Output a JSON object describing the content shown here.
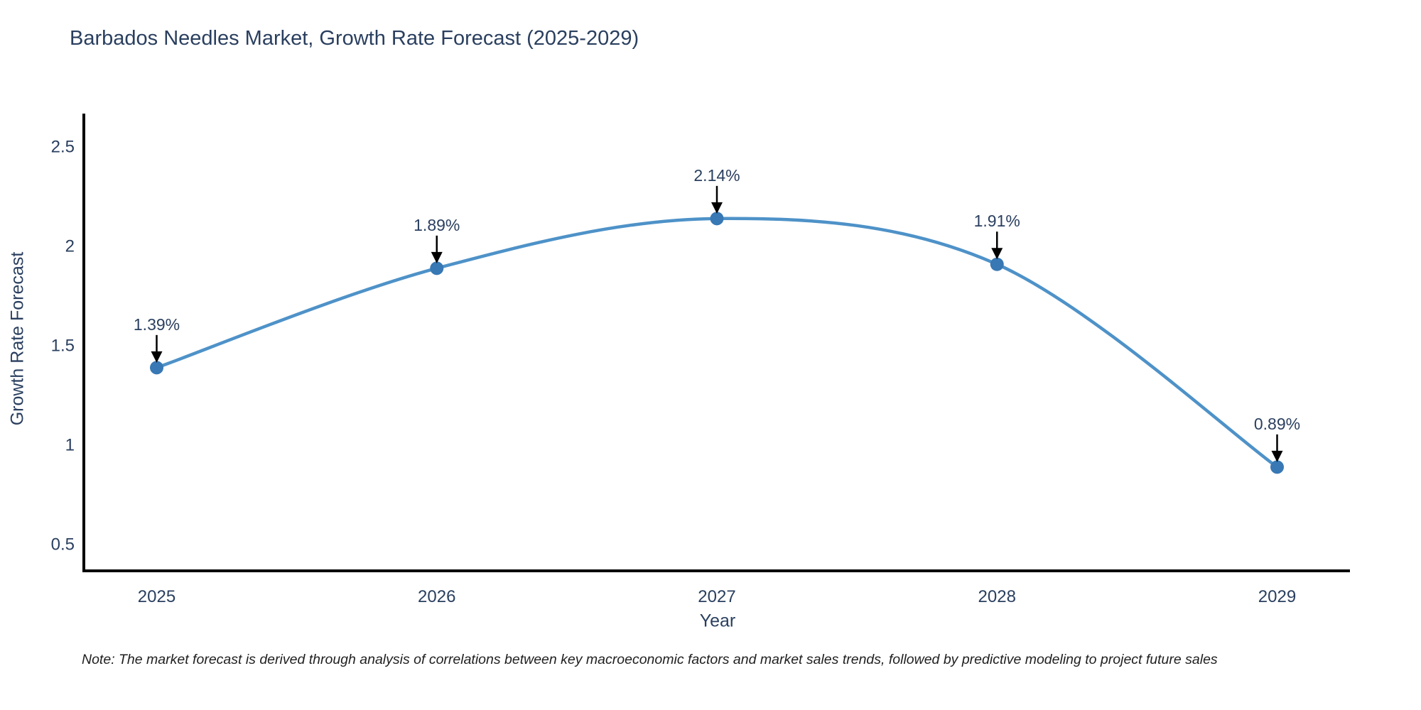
{
  "title": "Barbados Needles Market, Growth Rate Forecast (2025-2029)",
  "note": "Note: The market forecast is derived through analysis of correlations between key macroeconomic factors and market sales trends, followed by predictive modeling to project future sales",
  "chart_data": {
    "type": "line",
    "title": "Barbados Needles Market, Growth Rate Forecast (2025-2029)",
    "xlabel": "Year",
    "ylabel": "Growth Rate Forecast",
    "x": [
      2025,
      2026,
      2027,
      2028,
      2029
    ],
    "values": [
      1.39,
      1.89,
      2.14,
      1.91,
      0.89
    ],
    "point_labels": [
      "1.39%",
      "1.89%",
      "2.14%",
      "1.91%",
      "0.89%"
    ],
    "xticks": [
      "2025",
      "2026",
      "2027",
      "2028",
      "2029"
    ],
    "yticks": [
      0.5,
      1,
      1.5,
      2,
      2.5
    ],
    "xlim": [
      2024.74,
      2029.26
    ],
    "ylim": [
      0.368,
      2.668
    ],
    "grid": false,
    "legend": false,
    "line_shape": "spline",
    "colors": {
      "line": "#4e92c8",
      "marker": "#3878b4",
      "axis": "#000000",
      "tick_text": "#2a3f5f",
      "annotation_text": "#2a3f5f",
      "annotation_arrow": "#000000"
    }
  }
}
